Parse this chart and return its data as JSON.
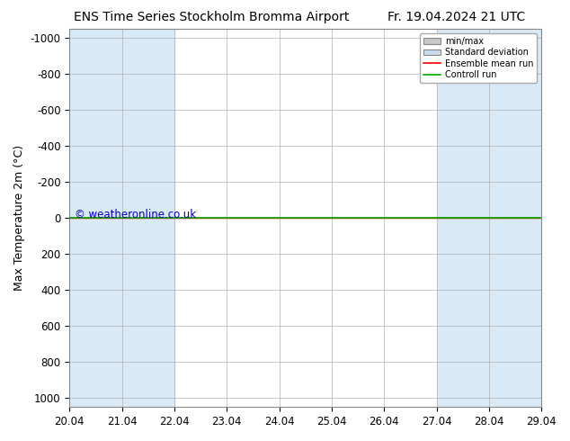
{
  "title_left": "ENS Time Series Stockholm Bromma Airport",
  "title_right": "Fr. 19.04.2024 21 UTC",
  "ylabel": "Max Temperature 2m (°C)",
  "ylim": [
    -1050,
    1050
  ],
  "yticks": [
    -1000,
    -800,
    -600,
    -400,
    -200,
    0,
    200,
    400,
    600,
    800,
    1000
  ],
  "xtick_labels": [
    "20.04",
    "21.04",
    "22.04",
    "23.04",
    "24.04",
    "25.04",
    "26.04",
    "27.04",
    "28.04",
    "29.04"
  ],
  "xtick_positions": [
    0,
    1,
    2,
    3,
    4,
    5,
    6,
    7,
    8,
    9
  ],
  "shaded_bands": [
    [
      0,
      1
    ],
    [
      1,
      2
    ],
    [
      7,
      8
    ],
    [
      8,
      9
    ]
  ],
  "shade_color": "#d8eaf7",
  "background_color": "#ffffff",
  "grid_color": "#b0b0b0",
  "ensemble_mean_color": "#ff0000",
  "control_run_color": "#00aa00",
  "min_max_color": "#b0c8e0",
  "std_dev_color": "#c8dced",
  "watermark_text": "© weatheronline.co.uk",
  "watermark_color": "#0000cc",
  "legend_items": [
    "min/max",
    "Standard deviation",
    "Ensemble mean run",
    "Controll run"
  ],
  "title_fontsize": 10,
  "axis_fontsize": 9,
  "tick_fontsize": 8.5
}
